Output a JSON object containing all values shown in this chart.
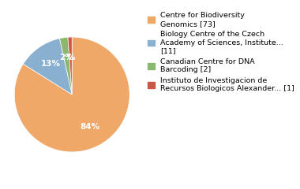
{
  "labels": [
    "Centre for Biodiversity\nGenomics [73]",
    "Biology Centre of the Czech\nAcademy of Sciences, Institute...\n[11]",
    "Canadian Centre for DNA\nBarcoding [2]",
    "Instituto de Investigacion de\nRecursos Biologicos Alexander... [1]"
  ],
  "values": [
    73,
    11,
    2,
    1
  ],
  "colors": [
    "#f0a868",
    "#8ab0d0",
    "#8ab870",
    "#cc5544"
  ],
  "figsize": [
    3.8,
    2.4
  ],
  "dpi": 100,
  "legend_fontsize": 6.8,
  "pct_fontsize": 7.5,
  "pct_color": "white"
}
